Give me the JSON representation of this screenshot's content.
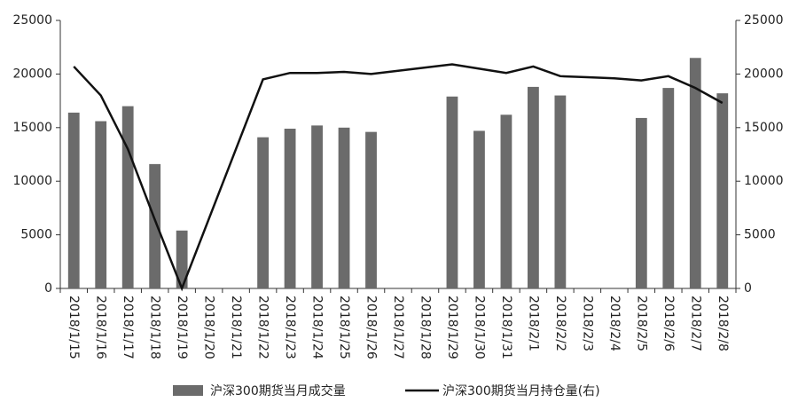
{
  "chart_data": {
    "type": "bar-line",
    "categories": [
      "2018/1/15",
      "2018/1/16",
      "2018/1/17",
      "2018/1/18",
      "2018/1/19",
      "2018/1/20",
      "2018/1/21",
      "2018/1/22",
      "2018/1/23",
      "2018/1/24",
      "2018/1/25",
      "2018/1/26",
      "2018/1/27",
      "2018/1/28",
      "2018/1/29",
      "2018/1/30",
      "2018/1/31",
      "2018/2/1",
      "2018/2/2",
      "2018/2/3",
      "2018/2/4",
      "2018/2/5",
      "2018/2/6",
      "2018/2/7",
      "2018/2/8"
    ],
    "series": [
      {
        "name": "沪深300期货当月成交量",
        "type": "bar",
        "color": "#6b6b6b",
        "values": [
          16400,
          15600,
          17000,
          11600,
          5400,
          null,
          null,
          14100,
          14900,
          15200,
          15000,
          14600,
          null,
          null,
          17900,
          14700,
          16200,
          18800,
          18000,
          null,
          null,
          15900,
          18700,
          21500,
          18200
        ]
      },
      {
        "name": "沪深300期货当月持仓量(右)",
        "type": "line",
        "axis": "y2",
        "color": "#111111",
        "values": [
          20700,
          18000,
          13000,
          6400,
          0,
          6500,
          13000,
          19500,
          20100,
          20100,
          20200,
          20000,
          20300,
          20600,
          20900,
          20500,
          20100,
          20700,
          19800,
          19700,
          19600,
          19400,
          19800,
          18700,
          17300
        ]
      }
    ],
    "ylim": [
      0,
      25000
    ],
    "yticks": [
      0,
      5000,
      10000,
      15000,
      20000,
      25000
    ],
    "y2lim": [
      0,
      25000
    ],
    "y2ticks": [
      0,
      5000,
      10000,
      15000,
      20000,
      25000
    ],
    "legend": "bottom"
  }
}
